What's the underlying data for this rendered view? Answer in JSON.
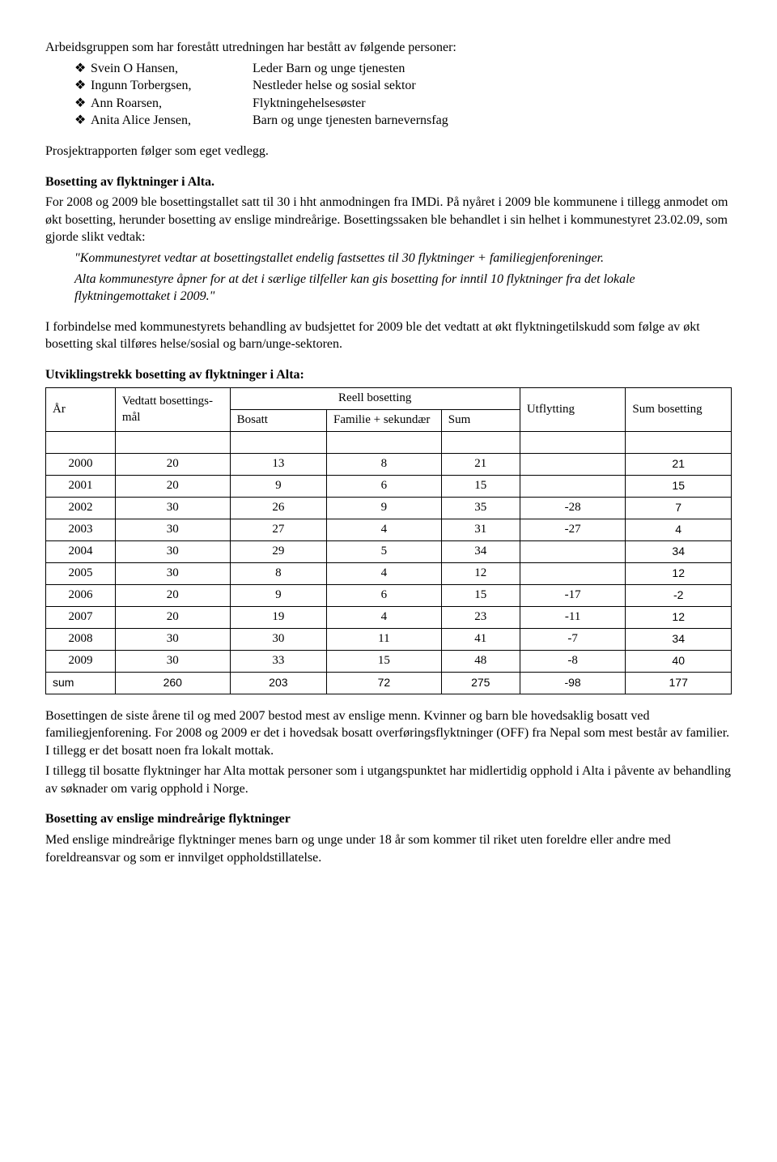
{
  "intro": "Arbeidsgruppen som har forestått utredningen har bestått av følgende personer:",
  "members": [
    {
      "name": "Svein O Hansen,",
      "role": "Leder Barn og unge tjenesten"
    },
    {
      "name": "Ingunn Torbergsen,",
      "role": "Nestleder helse og sosial sektor"
    },
    {
      "name": "Ann Roarsen,",
      "role": "Flyktningehelsesøster"
    },
    {
      "name": "Anita Alice Jensen,",
      "role": "Barn og unge tjenesten barnevernsfag"
    }
  ],
  "attach": "Prosjektrapporten følger som eget vedlegg.",
  "heading1": "Bosetting av flyktninger i Alta.",
  "body1": "For 2008 og 2009 ble bosettingstallet satt til 30 i hht anmodningen  fra IMDi. På nyåret i 2009 ble kommunene i tillegg anmodet om økt bosetting, herunder bosetting av enslige mindreårige. Bosettingssaken ble behandlet i sin helhet i kommunestyret 23.02.09, som gjorde slikt vedtak:",
  "quote1": "\"Kommunestyret vedtar at bosettingstallet endelig fastsettes til 30 flyktninger + familiegjenforeninger.",
  "quote2": "Alta kommunestyre åpner for at det i særlige tilfeller kan gis bosetting for inntil 10 flyktninger fra det lokale flyktningemottaket i 2009.\"",
  "body2": "I forbindelse med kommunestyrets behandling av budsjettet for 2009 ble det vedtatt at økt flyktningetilskudd som følge av økt bosetting skal tilføres helse/sosial og barn/unge-sektoren.",
  "heading2": "Utviklingstrekk bosetting av flyktninger i Alta:",
  "table": {
    "headers": {
      "year": "År",
      "vedtatt": "Vedtatt bosettings-mål",
      "reell": "Reell bosetting",
      "bosatt": "Bosatt",
      "familie": "Familie + sekundær",
      "sum": "Sum",
      "utflytting": "Utflytting",
      "sumbosetting": "Sum bosetting"
    },
    "rows": [
      {
        "year": "2000",
        "vedtatt": "20",
        "bosatt": "13",
        "familie": "8",
        "sum": "21",
        "utflytting": "",
        "sumbos": "21"
      },
      {
        "year": "2001",
        "vedtatt": "20",
        "bosatt": "9",
        "familie": "6",
        "sum": "15",
        "utflytting": "",
        "sumbos": "15"
      },
      {
        "year": "2002",
        "vedtatt": "30",
        "bosatt": "26",
        "familie": "9",
        "sum": "35",
        "utflytting": "-28",
        "sumbos": "7"
      },
      {
        "year": "2003",
        "vedtatt": "30",
        "bosatt": "27",
        "familie": "4",
        "sum": "31",
        "utflytting": "-27",
        "sumbos": "4"
      },
      {
        "year": "2004",
        "vedtatt": "30",
        "bosatt": "29",
        "familie": "5",
        "sum": "34",
        "utflytting": "",
        "sumbos": "34"
      },
      {
        "year": "2005",
        "vedtatt": "30",
        "bosatt": "8",
        "familie": "4",
        "sum": "12",
        "utflytting": "",
        "sumbos": "12"
      },
      {
        "year": "2006",
        "vedtatt": "20",
        "bosatt": "9",
        "familie": "6",
        "sum": "15",
        "utflytting": "-17",
        "sumbos": "-2"
      },
      {
        "year": "2007",
        "vedtatt": "20",
        "bosatt": "19",
        "familie": "4",
        "sum": "23",
        "utflytting": "-11",
        "sumbos": "12"
      },
      {
        "year": "2008",
        "vedtatt": "30",
        "bosatt": "30",
        "familie": "11",
        "sum": "41",
        "utflytting": "-7",
        "sumbos": "34"
      },
      {
        "year": "2009",
        "vedtatt": "30",
        "bosatt": "33",
        "familie": "15",
        "sum": "48",
        "utflytting": "-8",
        "sumbos": "40"
      }
    ],
    "sumrow": {
      "year": "sum",
      "vedtatt": "260",
      "bosatt": "203",
      "familie": "72",
      "sum": "275",
      "utflytting": "-98",
      "sumbos": "177"
    }
  },
  "body3": "Bosettingen de siste årene til og med 2007 bestod mest av enslige menn. Kvinner og barn ble hovedsaklig bosatt ved familiegjenforening. For 2008 og 2009 er det i hovedsak bosatt overføringsflyktninger (OFF) fra Nepal som mest består av familier. I tillegg er det bosatt noen fra lokalt mottak.",
  "body4": "I tillegg til bosatte flyktninger har Alta mottak personer som i utgangspunktet har midlertidig opphold i Alta i påvente av behandling av søknader om varig opphold i Norge.",
  "heading3": "Bosetting av enslige mindreårige flyktninger",
  "body5": "Med enslige mindreårige flyktninger menes barn og unge under 18 år som kommer til riket uten foreldre eller andre med foreldreansvar og som er innvilget oppholdstillatelse."
}
